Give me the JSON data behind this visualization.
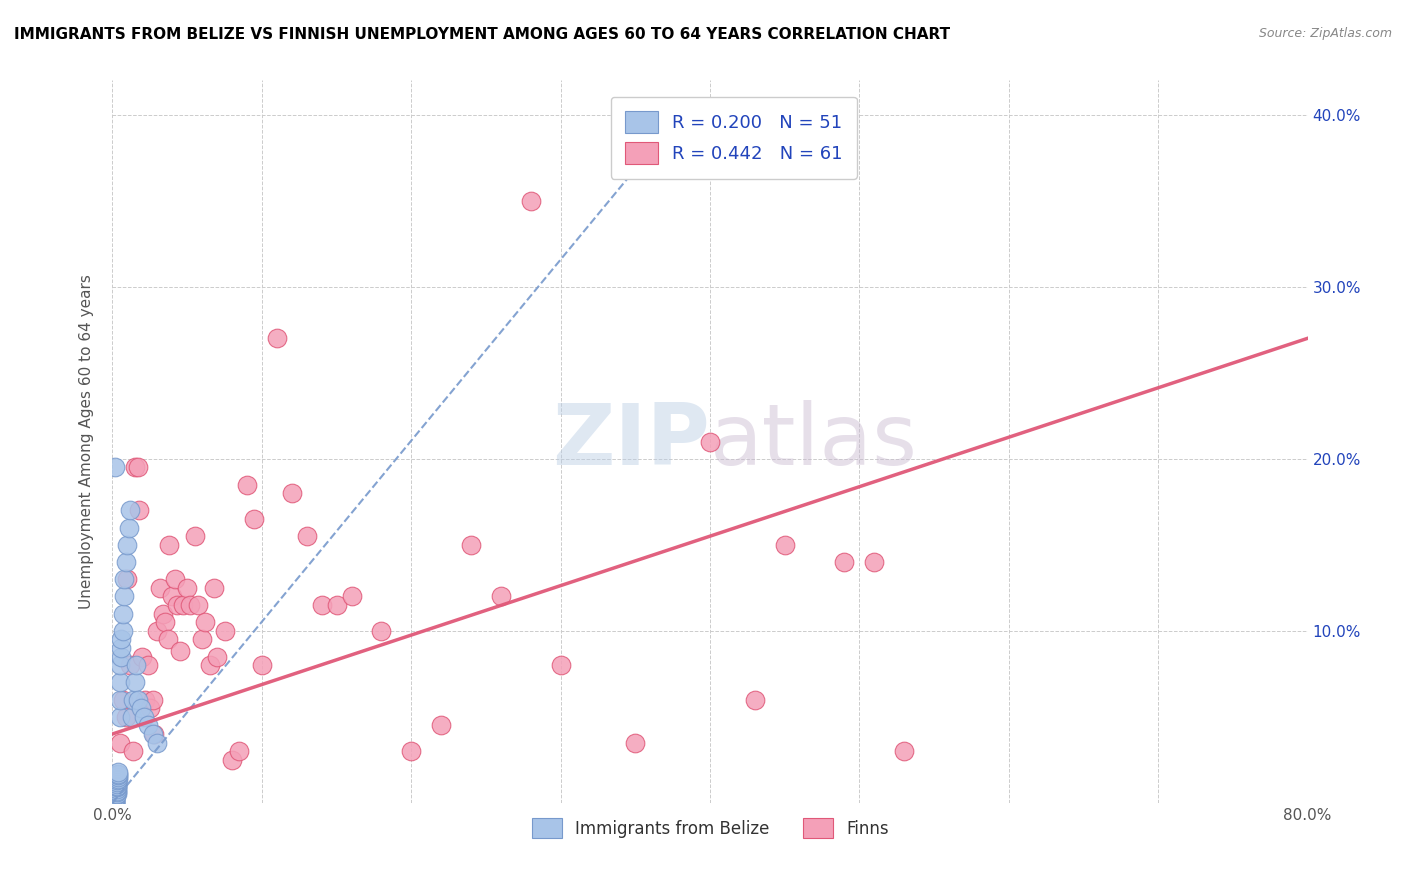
{
  "title": "IMMIGRANTS FROM BELIZE VS FINNISH UNEMPLOYMENT AMONG AGES 60 TO 64 YEARS CORRELATION CHART",
  "source": "Source: ZipAtlas.com",
  "ylabel": "Unemployment Among Ages 60 to 64 years",
  "xlim": [
    0.0,
    0.8
  ],
  "ylim": [
    0.0,
    0.42
  ],
  "belize_R": 0.2,
  "belize_N": 51,
  "finn_R": 0.442,
  "finn_N": 61,
  "belize_color": "#a8c4e8",
  "finn_color": "#f4a0b8",
  "belize_line_color": "#7799cc",
  "finn_line_color": "#e05878",
  "legend_text_color": "#2244bb",
  "watermark_zip": "ZIP",
  "watermark_atlas": "atlas",
  "belize_x": [
    0.002,
    0.002,
    0.002,
    0.002,
    0.002,
    0.002,
    0.002,
    0.002,
    0.002,
    0.002,
    0.003,
    0.003,
    0.003,
    0.003,
    0.003,
    0.003,
    0.003,
    0.003,
    0.003,
    0.003,
    0.004,
    0.004,
    0.004,
    0.004,
    0.004,
    0.005,
    0.005,
    0.005,
    0.005,
    0.006,
    0.006,
    0.006,
    0.007,
    0.007,
    0.008,
    0.008,
    0.009,
    0.01,
    0.011,
    0.012,
    0.013,
    0.014,
    0.015,
    0.016,
    0.017,
    0.019,
    0.021,
    0.024,
    0.027,
    0.03,
    0.002
  ],
  "belize_y": [
    0.0,
    0.0,
    0.0,
    0.001,
    0.001,
    0.002,
    0.002,
    0.003,
    0.004,
    0.005,
    0.005,
    0.006,
    0.007,
    0.008,
    0.009,
    0.01,
    0.01,
    0.011,
    0.012,
    0.013,
    0.014,
    0.015,
    0.016,
    0.017,
    0.018,
    0.05,
    0.06,
    0.07,
    0.08,
    0.085,
    0.09,
    0.095,
    0.1,
    0.11,
    0.12,
    0.13,
    0.14,
    0.15,
    0.16,
    0.17,
    0.05,
    0.06,
    0.07,
    0.08,
    0.06,
    0.055,
    0.05,
    0.045,
    0.04,
    0.035,
    0.195
  ],
  "finn_x": [
    0.005,
    0.007,
    0.009,
    0.01,
    0.012,
    0.014,
    0.015,
    0.017,
    0.018,
    0.02,
    0.022,
    0.024,
    0.025,
    0.027,
    0.028,
    0.03,
    0.032,
    0.034,
    0.035,
    0.037,
    0.038,
    0.04,
    0.042,
    0.043,
    0.045,
    0.047,
    0.05,
    0.052,
    0.055,
    0.057,
    0.06,
    0.062,
    0.065,
    0.068,
    0.07,
    0.075,
    0.08,
    0.085,
    0.09,
    0.095,
    0.1,
    0.11,
    0.12,
    0.13,
    0.14,
    0.15,
    0.16,
    0.18,
    0.2,
    0.22,
    0.24,
    0.26,
    0.28,
    0.3,
    0.35,
    0.4,
    0.43,
    0.45,
    0.49,
    0.51,
    0.53
  ],
  "finn_y": [
    0.035,
    0.06,
    0.05,
    0.13,
    0.08,
    0.03,
    0.195,
    0.195,
    0.17,
    0.085,
    0.06,
    0.08,
    0.055,
    0.06,
    0.04,
    0.1,
    0.125,
    0.11,
    0.105,
    0.095,
    0.15,
    0.12,
    0.13,
    0.115,
    0.088,
    0.115,
    0.125,
    0.115,
    0.155,
    0.115,
    0.095,
    0.105,
    0.08,
    0.125,
    0.085,
    0.1,
    0.025,
    0.03,
    0.185,
    0.165,
    0.08,
    0.27,
    0.18,
    0.155,
    0.115,
    0.115,
    0.12,
    0.1,
    0.03,
    0.045,
    0.15,
    0.12,
    0.35,
    0.08,
    0.035,
    0.21,
    0.06,
    0.15,
    0.14,
    0.14,
    0.03
  ],
  "belize_trend_x": [
    0.0,
    0.38
  ],
  "belize_trend_y": [
    0.0,
    0.4
  ],
  "finn_trend_x": [
    0.0,
    0.8
  ],
  "finn_trend_y": [
    0.04,
    0.27
  ]
}
